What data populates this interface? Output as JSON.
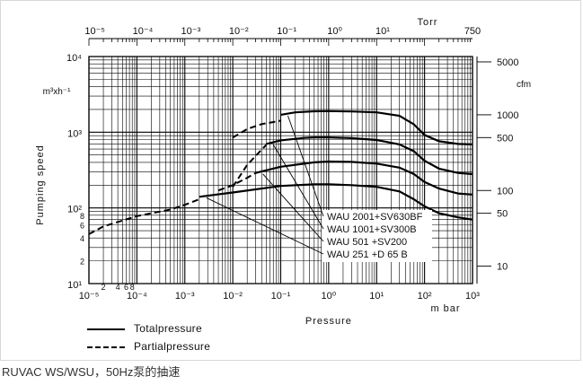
{
  "chart_data": {
    "type": "line",
    "xscale": "log",
    "yscale": "log",
    "xlim": [
      1e-05,
      1000
    ],
    "ylim": [
      10,
      10000
    ],
    "xlabel": "Pressure",
    "xunit": "m bar",
    "ylabel": "Pumping speed",
    "yunit": "m³xh⁻¹",
    "x_ticks": [
      "10⁻⁵",
      "10⁻⁴",
      "10⁻³",
      "10⁻²",
      "10⁻¹",
      "10⁰",
      "10¹",
      "10²",
      "10³"
    ],
    "x_minor_tick_labels": [
      "2",
      "4",
      "6",
      "8"
    ],
    "y_ticks": [
      "10¹",
      "10²",
      "10³",
      "10⁴"
    ],
    "y_minor_tick_labels": [
      "2",
      "4",
      "6",
      "8"
    ],
    "top_axis": {
      "unit": "Torr",
      "ticks": [
        "10⁻⁵",
        "10⁻⁴",
        "10⁻³",
        "10⁻²",
        "10⁻¹",
        "10⁰",
        "10¹",
        "750"
      ]
    },
    "right_axis": {
      "unit": "cfm",
      "ticks": [
        "5000",
        "1000",
        "500",
        "100",
        "50",
        "10"
      ]
    },
    "series": [
      {
        "name": "WAU 2001+SV630BF",
        "total": [
          [
            0.1,
            1700
          ],
          [
            0.2,
            1830
          ],
          [
            0.5,
            1890
          ],
          [
            1,
            1900
          ],
          [
            3,
            1880
          ],
          [
            10,
            1830
          ],
          [
            30,
            1650
          ],
          [
            60,
            1270
          ],
          [
            100,
            920
          ],
          [
            200,
            760
          ],
          [
            500,
            700
          ],
          [
            1000,
            690
          ]
        ],
        "partial": [
          [
            0.01,
            850
          ],
          [
            0.02,
            1100
          ],
          [
            0.04,
            1280
          ],
          [
            0.1,
            1420
          ]
        ]
      },
      {
        "name": "WAU 1001+SV300B",
        "total": [
          [
            0.05,
            700
          ],
          [
            0.1,
            780
          ],
          [
            0.3,
            840
          ],
          [
            0.5,
            855
          ],
          [
            1,
            855
          ],
          [
            3,
            835
          ],
          [
            10,
            790
          ],
          [
            30,
            690
          ],
          [
            60,
            560
          ],
          [
            100,
            420
          ],
          [
            200,
            330
          ],
          [
            500,
            290
          ],
          [
            1000,
            280
          ]
        ],
        "partial": [
          [
            0.01,
            190
          ],
          [
            0.02,
            370
          ],
          [
            0.04,
            590
          ],
          [
            0.05,
            680
          ]
        ]
      },
      {
        "name": "WAU 501 +SV200",
        "total": [
          [
            0.03,
            290
          ],
          [
            0.1,
            350
          ],
          [
            0.5,
            400
          ],
          [
            1,
            410
          ],
          [
            3,
            405
          ],
          [
            10,
            385
          ],
          [
            30,
            340
          ],
          [
            60,
            280
          ],
          [
            100,
            220
          ],
          [
            200,
            180
          ],
          [
            500,
            155
          ],
          [
            1000,
            150
          ]
        ],
        "partial": [
          [
            0.005,
            170
          ],
          [
            0.01,
            200
          ],
          [
            0.02,
            250
          ],
          [
            0.03,
            290
          ]
        ]
      },
      {
        "name": "WAU 251 +D 65 B",
        "total": [
          [
            0.002,
            140
          ],
          [
            0.01,
            160
          ],
          [
            0.1,
            195
          ],
          [
            0.5,
            205
          ],
          [
            1,
            205
          ],
          [
            3,
            200
          ],
          [
            10,
            190
          ],
          [
            30,
            165
          ],
          [
            60,
            130
          ],
          [
            100,
            105
          ],
          [
            200,
            85
          ],
          [
            500,
            75
          ],
          [
            1000,
            70
          ]
        ],
        "partial": [
          [
            1e-05,
            45
          ],
          [
            2e-05,
            57
          ],
          [
            5e-05,
            68
          ],
          [
            0.0001,
            78
          ],
          [
            0.0005,
            95
          ],
          [
            0.001,
            110
          ],
          [
            0.002,
            130
          ]
        ]
      }
    ],
    "legend": {
      "placement": "bottom-left",
      "total_label": "Totalpressure",
      "partial_label": "Partialpressure"
    }
  },
  "caption": "RUVAC WS/WSU，50Hz泵的抽速"
}
